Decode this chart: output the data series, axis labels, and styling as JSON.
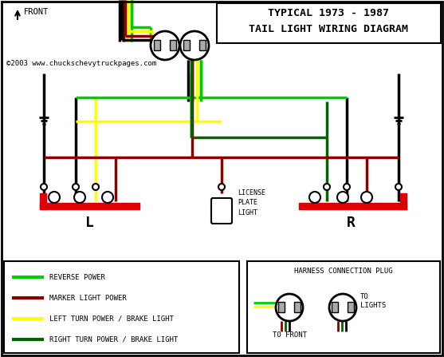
{
  "title_line1": "TYPICAL 1973 - 1987",
  "title_line2": "TAIL LIGHT WIRING DIAGRAM",
  "copyright": "©2003 www.chuckschevytruckpages.com",
  "bg_color": "#ffffff",
  "wire_colors": {
    "green_bright": "#00cc00",
    "dark_red": "#8b0000",
    "yellow": "#ffff00",
    "dark_green": "#006400",
    "black": "#000000",
    "red": "#dd0000"
  },
  "legend_items": [
    {
      "color": "#00cc00",
      "label": "REVERSE POWER"
    },
    {
      "color": "#8b0000",
      "label": "MARKER LIGHT POWER"
    },
    {
      "color": "#ffff00",
      "label": "LEFT TURN POWER / BRAKE LIGHT"
    },
    {
      "color": "#006400",
      "label": "RIGHT TURN POWER / BRAKE LIGHT"
    }
  ],
  "label_L": "L",
  "label_R": "R",
  "license_plate_label": "LICENSE\nPLATE\nLIGHT",
  "harness_label": "HARNESS CONNECTION PLUG",
  "to_front": "TO FRONT",
  "to_lights": "TO\nLIGHTS"
}
